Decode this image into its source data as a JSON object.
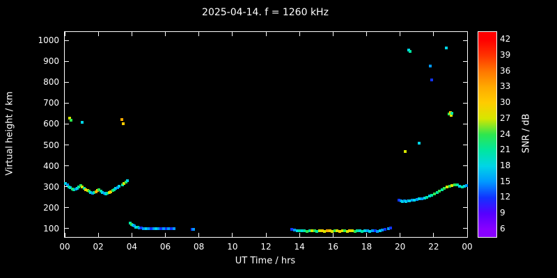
{
  "chart_data": {
    "type": "scatter",
    "title": "2025-04-14. f = 1260 kHz",
    "xlabel": "UT Time / hrs",
    "ylabel": "Virtual height / km",
    "background": "#000000",
    "axis_color": "#ffffff",
    "grid": false,
    "xlim": [
      0,
      24
    ],
    "ylim": [
      60,
      1040
    ],
    "x_ticks": [
      "00",
      "02",
      "04",
      "06",
      "08",
      "10",
      "12",
      "14",
      "16",
      "18",
      "20",
      "22",
      "00"
    ],
    "x_tick_hours": [
      0,
      2,
      4,
      6,
      8,
      10,
      12,
      14,
      16,
      18,
      20,
      22,
      24
    ],
    "y_ticks": [
      100,
      200,
      300,
      400,
      500,
      600,
      700,
      800,
      900,
      1000
    ],
    "colorbar": {
      "label": "SNR / dB",
      "ticks": [
        6,
        9,
        12,
        15,
        18,
        21,
        24,
        27,
        30,
        33,
        36,
        39,
        42
      ],
      "range": [
        4.5,
        43.5
      ],
      "stops": [
        {
          "v": 6,
          "c": "#8800ff"
        },
        {
          "v": 9,
          "c": "#5500ff"
        },
        {
          "v": 12,
          "c": "#1133ff"
        },
        {
          "v": 15,
          "c": "#0099ff"
        },
        {
          "v": 18,
          "c": "#00d5e6"
        },
        {
          "v": 21,
          "c": "#00e6a0"
        },
        {
          "v": 24,
          "c": "#2ee64e"
        },
        {
          "v": 27,
          "c": "#d6e600"
        },
        {
          "v": 30,
          "c": "#ffcc00"
        },
        {
          "v": 33,
          "c": "#ffaa00"
        },
        {
          "v": 36,
          "c": "#ff7700"
        },
        {
          "v": 39,
          "c": "#ff3300"
        },
        {
          "v": 42,
          "c": "#ff0000"
        }
      ]
    },
    "points": [
      [
        0.05,
        315,
        18
      ],
      [
        0.15,
        310,
        15
      ],
      [
        0.25,
        300,
        21
      ],
      [
        0.35,
        295,
        18
      ],
      [
        0.45,
        290,
        24
      ],
      [
        0.55,
        285,
        21
      ],
      [
        0.65,
        288,
        15
      ],
      [
        0.75,
        292,
        18
      ],
      [
        0.85,
        298,
        21
      ],
      [
        0.95,
        305,
        24
      ],
      [
        1.05,
        300,
        27
      ],
      [
        1.15,
        293,
        21
      ],
      [
        1.25,
        287,
        30
      ],
      [
        1.35,
        282,
        27
      ],
      [
        1.45,
        278,
        24
      ],
      [
        1.55,
        273,
        18
      ],
      [
        1.65,
        270,
        15
      ],
      [
        1.75,
        272,
        21
      ],
      [
        1.85,
        276,
        33
      ],
      [
        1.95,
        281,
        30
      ],
      [
        2.05,
        286,
        24
      ],
      [
        2.15,
        280,
        21
      ],
      [
        2.25,
        274,
        18
      ],
      [
        2.35,
        269,
        15
      ],
      [
        2.45,
        266,
        18
      ],
      [
        2.55,
        268,
        21
      ],
      [
        2.65,
        272,
        27
      ],
      [
        2.75,
        277,
        30
      ],
      [
        2.85,
        282,
        24
      ],
      [
        2.95,
        287,
        21
      ],
      [
        3.05,
        292,
        18
      ],
      [
        3.15,
        297,
        15
      ],
      [
        3.25,
        302,
        18
      ],
      [
        3.45,
        308,
        21
      ],
      [
        3.55,
        315,
        27
      ],
      [
        3.65,
        322,
        24
      ],
      [
        3.75,
        330,
        18
      ],
      [
        0.3,
        628,
        27
      ],
      [
        0.38,
        618,
        24
      ],
      [
        1.02,
        608,
        18
      ],
      [
        3.4,
        622,
        33
      ],
      [
        3.5,
        600,
        30
      ],
      [
        3.9,
        128,
        21
      ],
      [
        4.0,
        120,
        24
      ],
      [
        4.05,
        115,
        18
      ],
      [
        4.15,
        112,
        15
      ],
      [
        4.25,
        108,
        18
      ],
      [
        4.35,
        106,
        21
      ],
      [
        4.45,
        104,
        15
      ],
      [
        4.55,
        102,
        12
      ],
      [
        4.7,
        101,
        15
      ],
      [
        4.85,
        100,
        18
      ],
      [
        5.0,
        99,
        15
      ],
      [
        5.15,
        100,
        12
      ],
      [
        5.3,
        101,
        15
      ],
      [
        5.45,
        100,
        18
      ],
      [
        5.6,
        99,
        15
      ],
      [
        5.75,
        100,
        12
      ],
      [
        5.9,
        100,
        15
      ],
      [
        6.05,
        99,
        12
      ],
      [
        6.2,
        100,
        15
      ],
      [
        6.35,
        100,
        12
      ],
      [
        6.5,
        99,
        15
      ],
      [
        7.6,
        96,
        12
      ],
      [
        7.68,
        95,
        15
      ],
      [
        13.55,
        96,
        12
      ],
      [
        13.7,
        93,
        15
      ],
      [
        13.85,
        91,
        18
      ],
      [
        14.0,
        90,
        21
      ],
      [
        14.15,
        89,
        18
      ],
      [
        14.3,
        90,
        21
      ],
      [
        14.45,
        88,
        24
      ],
      [
        14.6,
        90,
        21
      ],
      [
        14.75,
        89,
        27
      ],
      [
        14.9,
        90,
        24
      ],
      [
        15.05,
        88,
        21
      ],
      [
        15.2,
        90,
        27
      ],
      [
        15.35,
        89,
        30
      ],
      [
        15.5,
        88,
        27
      ],
      [
        15.65,
        90,
        33
      ],
      [
        15.8,
        89,
        30
      ],
      [
        15.95,
        88,
        27
      ],
      [
        16.1,
        90,
        24
      ],
      [
        16.25,
        89,
        27
      ],
      [
        16.4,
        88,
        30
      ],
      [
        16.55,
        90,
        27
      ],
      [
        16.7,
        89,
        24
      ],
      [
        16.85,
        88,
        27
      ],
      [
        17.0,
        90,
        30
      ],
      [
        17.15,
        89,
        27
      ],
      [
        17.3,
        88,
        24
      ],
      [
        17.45,
        90,
        21
      ],
      [
        17.6,
        89,
        18
      ],
      [
        17.75,
        88,
        21
      ],
      [
        17.9,
        90,
        18
      ],
      [
        18.05,
        89,
        15
      ],
      [
        18.2,
        88,
        18
      ],
      [
        18.35,
        90,
        15
      ],
      [
        18.5,
        89,
        12
      ],
      [
        18.65,
        88,
        15
      ],
      [
        18.8,
        90,
        18
      ],
      [
        18.95,
        93,
        15
      ],
      [
        19.1,
        96,
        12
      ],
      [
        19.3,
        99,
        15
      ],
      [
        19.45,
        102,
        12
      ],
      [
        19.95,
        235,
        12
      ],
      [
        20.05,
        232,
        15
      ],
      [
        20.15,
        230,
        18
      ],
      [
        20.25,
        233,
        15
      ],
      [
        20.35,
        231,
        18
      ],
      [
        20.45,
        234,
        15
      ],
      [
        20.55,
        232,
        18
      ],
      [
        20.7,
        235,
        15
      ],
      [
        20.85,
        237,
        18
      ],
      [
        21.0,
        240,
        15
      ],
      [
        21.15,
        242,
        18
      ],
      [
        21.3,
        244,
        15
      ],
      [
        21.45,
        247,
        18
      ],
      [
        21.6,
        251,
        21
      ],
      [
        21.75,
        255,
        18
      ],
      [
        21.9,
        260,
        21
      ],
      [
        22.05,
        266,
        24
      ],
      [
        22.2,
        272,
        21
      ],
      [
        22.35,
        279,
        24
      ],
      [
        22.5,
        287,
        21
      ],
      [
        22.65,
        293,
        24
      ],
      [
        22.8,
        298,
        27
      ],
      [
        22.95,
        302,
        24
      ],
      [
        23.1,
        306,
        27
      ],
      [
        23.25,
        310,
        24
      ],
      [
        23.4,
        308,
        21
      ],
      [
        23.55,
        304,
        18
      ],
      [
        23.7,
        300,
        21
      ],
      [
        23.85,
        303,
        18
      ],
      [
        23.95,
        306,
        15
      ],
      [
        20.3,
        470,
        27
      ],
      [
        20.5,
        952,
        18
      ],
      [
        20.58,
        948,
        21
      ],
      [
        21.15,
        508,
        18
      ],
      [
        21.8,
        878,
        15
      ],
      [
        21.9,
        812,
        12
      ],
      [
        22.75,
        962,
        18
      ],
      [
        22.9,
        648,
        24
      ],
      [
        23.0,
        655,
        30
      ],
      [
        23.05,
        640,
        27
      ],
      [
        23.1,
        650,
        21
      ]
    ]
  }
}
